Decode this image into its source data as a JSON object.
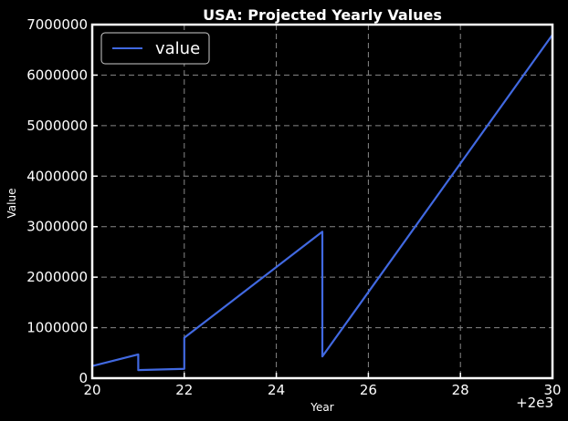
{
  "chart_data": {
    "type": "line",
    "title": "USA: Projected Yearly Values",
    "xlabel": "Year",
    "ylabel": "Value",
    "x_offset_label": "+2e3",
    "xlim": [
      20,
      30
    ],
    "ylim": [
      0,
      7000000
    ],
    "x_ticks": [
      "20",
      "22",
      "24",
      "26",
      "28",
      "30"
    ],
    "y_ticks": [
      "0",
      "1000000",
      "2000000",
      "3000000",
      "4000000",
      "5000000",
      "6000000",
      "7000000"
    ],
    "grid": true,
    "legend_position": "upper-left",
    "series": [
      {
        "name": "value",
        "color": "#4169e1",
        "x": [
          20,
          21,
          21,
          22,
          22,
          25,
          25,
          30
        ],
        "y": [
          240000,
          470000,
          160000,
          185000,
          800000,
          2900000,
          430000,
          6800000
        ]
      }
    ]
  },
  "colors": {
    "background": "#000000",
    "axes": "#ffffff",
    "grid": "#888888"
  }
}
